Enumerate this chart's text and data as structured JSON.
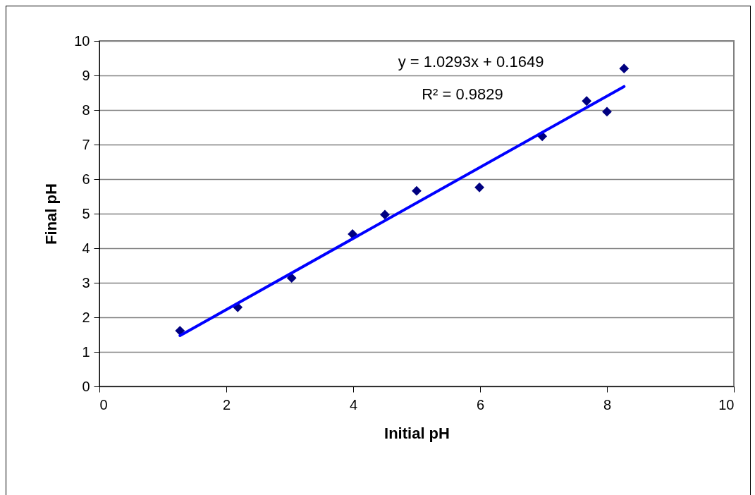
{
  "chart_data": {
    "type": "scatter",
    "xlabel": "Initial pH",
    "ylabel": "Final pH",
    "xlim": [
      0,
      10
    ],
    "xticks": [
      0,
      2,
      4,
      6,
      8,
      10
    ],
    "ylim": [
      0,
      10
    ],
    "yticks": [
      0,
      1,
      2,
      3,
      4,
      5,
      6,
      7,
      8,
      9,
      10
    ],
    "grid": "y",
    "annotations": [
      "y = 1.0293x + 0.1649",
      "R² = 0.9829"
    ],
    "series": [
      {
        "color": "#000080",
        "marker": "diamond",
        "x": [
          1.27,
          2.18,
          3.03,
          3.99,
          4.5,
          5.0,
          5.99,
          6.98,
          7.68,
          8.0,
          8.27
        ],
        "values": [
          1.61,
          2.29,
          3.14,
          4.41,
          4.97,
          5.66,
          5.76,
          7.24,
          8.26,
          7.95,
          9.2
        ]
      },
      {
        "type": "line",
        "color": "#0000ff",
        "x": [
          1.27,
          8.27
        ],
        "values": [
          1.47,
          8.68
        ]
      }
    ]
  }
}
